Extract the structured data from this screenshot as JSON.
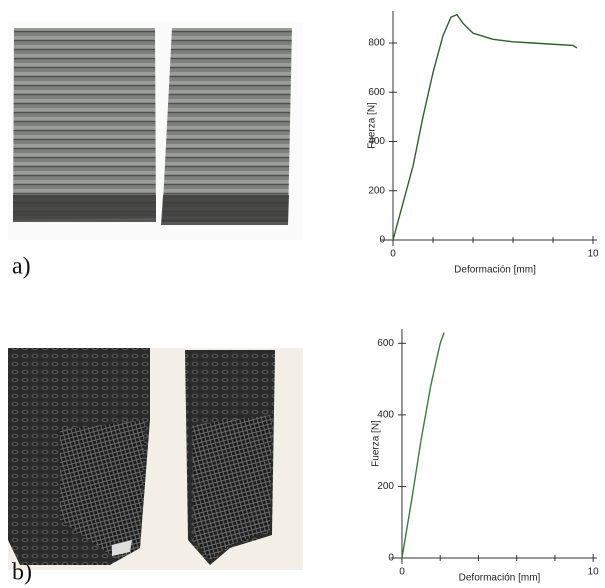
{
  "panel_labels": [
    "a)",
    "b)"
  ],
  "chart_data": [
    {
      "type": "line",
      "x_label": "Deformación [mm]",
      "y_label": "Fuerza [N]",
      "xlim": [
        -0.6,
        10.2
      ],
      "ylim": [
        0,
        930
      ],
      "xticks": [
        0,
        10
      ],
      "xminorticks": [
        2,
        4,
        6,
        8
      ],
      "yticks": [
        0,
        200,
        400,
        600,
        800
      ],
      "series": [
        {
          "color": "#2f5f2f",
          "x": [
            0,
            0.5,
            1,
            1.5,
            2,
            2.5,
            2.9,
            3.2,
            3.5,
            4,
            5,
            6,
            7,
            8,
            9,
            9.2
          ],
          "values": [
            0,
            150,
            300,
            500,
            680,
            830,
            905,
            915,
            880,
            840,
            815,
            805,
            800,
            795,
            790,
            780
          ]
        }
      ]
    },
    {
      "type": "line",
      "x_label": "Deformación [mm]",
      "y_label": "Fuerza [N]",
      "xlim": [
        -0.6,
        10.2
      ],
      "ylim": [
        0,
        640
      ],
      "xticks": [
        0,
        10
      ],
      "xminorticks": [
        2,
        4,
        6,
        8
      ],
      "yticks": [
        0,
        200,
        400,
        600
      ],
      "series": [
        {
          "color": "#3f7a3f",
          "x": [
            0,
            0.5,
            1,
            1.5,
            2,
            2.2
          ],
          "values": [
            0,
            160,
            330,
            480,
            600,
            630
          ]
        }
      ]
    }
  ]
}
